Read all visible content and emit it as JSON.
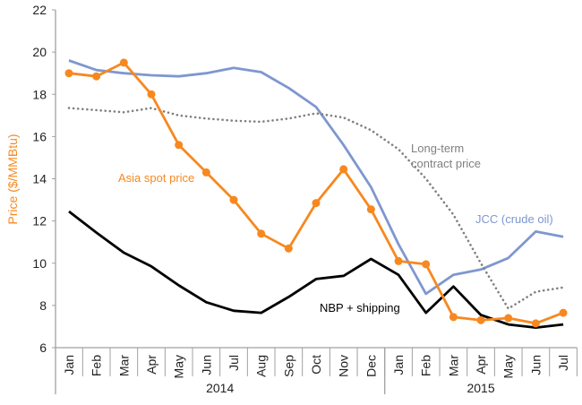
{
  "chart_data": {
    "type": "line",
    "title": "",
    "ylabel": "Price ($/MMBtu)",
    "xlabel": "",
    "ylim": [
      6,
      22
    ],
    "yticks": [
      6,
      8,
      10,
      12,
      14,
      16,
      18,
      20,
      22
    ],
    "grid": false,
    "categories": [
      "Jan",
      "Feb",
      "Mar",
      "Apr",
      "May",
      "Jun",
      "Jul",
      "Aug",
      "Sep",
      "Oct",
      "Nov",
      "Dec",
      "Jan",
      "Feb",
      "Mar",
      "Apr",
      "May",
      "Jun",
      "Jul"
    ],
    "year_groups": [
      {
        "label": "2014",
        "count": 12
      },
      {
        "label": "2015",
        "count": 7
      }
    ],
    "series": [
      {
        "name": "JCC (crude oil)",
        "color": "#7f97cf",
        "style": "solid",
        "markers": false,
        "values": [
          19.6,
          19.15,
          19.0,
          18.9,
          18.85,
          19.0,
          19.25,
          19.05,
          18.3,
          17.4,
          15.6,
          13.6,
          10.9,
          8.55,
          9.45,
          9.7,
          10.25,
          11.5,
          11.25
        ]
      },
      {
        "name": "Long-term contract price",
        "color": "#808080",
        "style": "dotted",
        "markers": false,
        "values": [
          17.35,
          17.25,
          17.15,
          17.35,
          17.0,
          16.85,
          16.75,
          16.7,
          16.85,
          17.1,
          16.9,
          16.3,
          15.4,
          14.0,
          12.3,
          10.0,
          7.85,
          8.65,
          8.85
        ]
      },
      {
        "name": "NBP + shipping",
        "color": "#000000",
        "style": "solid",
        "markers": false,
        "values": [
          12.45,
          11.45,
          10.5,
          9.85,
          8.95,
          8.15,
          7.75,
          7.65,
          8.4,
          9.25,
          9.4,
          10.2,
          9.45,
          7.65,
          8.9,
          7.55,
          7.1,
          6.95,
          7.1
        ]
      },
      {
        "name": "Asia spot price",
        "color": "#f7881f",
        "style": "solid",
        "markers": true,
        "values": [
          19.0,
          18.85,
          19.5,
          18.0,
          15.6,
          14.3,
          13.0,
          11.4,
          10.7,
          12.85,
          14.45,
          12.55,
          10.1,
          9.95,
          7.45,
          7.3,
          7.4,
          7.15,
          7.65
        ]
      }
    ],
    "annotations": {
      "asia": "Asia spot price",
      "ltc_line1": "Long-term",
      "ltc_line2": "contract price",
      "jcc": "JCC (crude oil)",
      "nbp": "NBP + shipping"
    }
  }
}
